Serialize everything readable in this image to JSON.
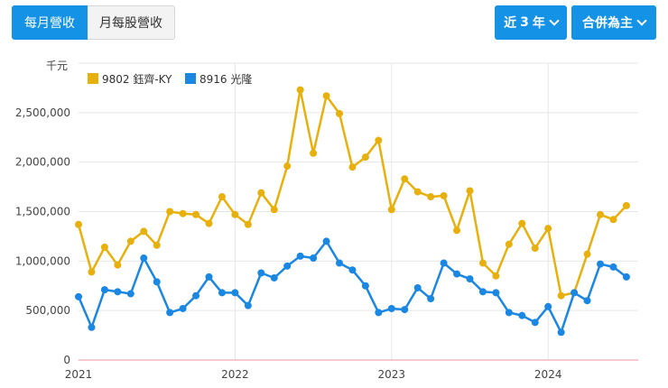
{
  "tabs": [
    {
      "label": "每月營收",
      "active": true
    },
    {
      "label": "月每股營收",
      "active": false
    }
  ],
  "dropdowns": {
    "range_prefix": "近",
    "range_num": "3",
    "range_suffix": "年",
    "consolidation": "合併為主"
  },
  "colors": {
    "accent": "#1492e6",
    "series1": "#e8b00c",
    "series2": "#1a87e3",
    "zero_line": "#f4b6c0",
    "grid": "#e6e6e6"
  },
  "chart_data": {
    "type": "line",
    "unit": "千元",
    "ylim": [
      0,
      3000000
    ],
    "yticks": [
      {
        "value": 0,
        "label": "0"
      },
      {
        "value": 500000,
        "label": "500,000"
      },
      {
        "value": 1000000,
        "label": "1,000,000"
      },
      {
        "value": 1500000,
        "label": "1,500,000"
      },
      {
        "value": 2000000,
        "label": "2,000,000"
      },
      {
        "value": 2500000,
        "label": "2,500,000"
      }
    ],
    "xticks": [
      {
        "month": 0,
        "label": "2021"
      },
      {
        "month": 12,
        "label": "2022"
      },
      {
        "month": 24,
        "label": "2023"
      },
      {
        "month": 36,
        "label": "2024"
      }
    ],
    "x_start": "2021-01",
    "x_end": "2024-07",
    "legend_position": "top-left",
    "grid": true,
    "series": [
      {
        "name": "9802 鈺齊-KY",
        "values": [
          1370000,
          890000,
          1140000,
          960000,
          1200000,
          1300000,
          1160000,
          1500000,
          1480000,
          1470000,
          1380000,
          1650000,
          1470000,
          1370000,
          1690000,
          1520000,
          1960000,
          2730000,
          2090000,
          2670000,
          2490000,
          1950000,
          2050000,
          2220000,
          1520000,
          1830000,
          1700000,
          1650000,
          1660000,
          1310000,
          1710000,
          980000,
          850000,
          1170000,
          1380000,
          1130000,
          1330000,
          650000,
          680000,
          1070000,
          1470000,
          1420000,
          1560000
        ]
      },
      {
        "name": "8916 光隆",
        "values": [
          640000,
          330000,
          710000,
          690000,
          670000,
          1030000,
          790000,
          480000,
          520000,
          650000,
          840000,
          680000,
          680000,
          550000,
          880000,
          830000,
          950000,
          1050000,
          1030000,
          1200000,
          980000,
          910000,
          750000,
          480000,
          520000,
          510000,
          730000,
          620000,
          980000,
          870000,
          820000,
          690000,
          680000,
          480000,
          450000,
          380000,
          540000,
          280000,
          680000,
          600000,
          970000,
          940000,
          840000
        ]
      }
    ]
  }
}
